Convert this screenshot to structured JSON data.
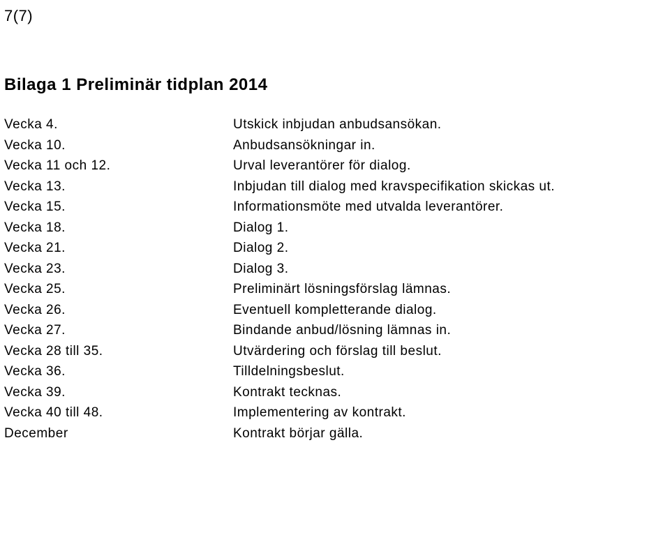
{
  "page_number": "7(7)",
  "heading": "Bilaga 1 Preliminär tidplan 2014",
  "rows": [
    {
      "label": "Vecka 4.",
      "desc": "Utskick inbjudan anbudsansökan."
    },
    {
      "label": "Vecka 10.",
      "desc": "Anbudsansökningar in."
    },
    {
      "label": "Vecka 11 och 12.",
      "desc": "Urval leverantörer för dialog."
    },
    {
      "label": "Vecka 13.",
      "desc": "Inbjudan till dialog med kravspecifikation skickas ut."
    },
    {
      "label": "Vecka 15.",
      "desc": "Informationsmöte med utvalda leverantörer."
    },
    {
      "label": "Vecka 18.",
      "desc": "Dialog 1."
    },
    {
      "label": "Vecka 21.",
      "desc": "Dialog 2."
    },
    {
      "label": "Vecka 23.",
      "desc": "Dialog 3."
    },
    {
      "label": "Vecka 25.",
      "desc": "Preliminärt lösningsförslag lämnas."
    },
    {
      "label": "Vecka 26.",
      "desc": "Eventuell kompletterande dialog."
    },
    {
      "label": "Vecka 27.",
      "desc": "Bindande anbud/lösning lämnas in."
    },
    {
      "label": "Vecka 28 till 35.",
      "desc": "Utvärdering och förslag till beslut."
    },
    {
      "label": "Vecka 36.",
      "desc": "Tilldelningsbeslut."
    },
    {
      "label": "Vecka 39.",
      "desc": "Kontrakt tecknas."
    },
    {
      "label": "Vecka 40 till 48.",
      "desc": "Implementering av kontrakt."
    },
    {
      "label": "December",
      "desc": "Kontrakt börjar gälla."
    }
  ]
}
